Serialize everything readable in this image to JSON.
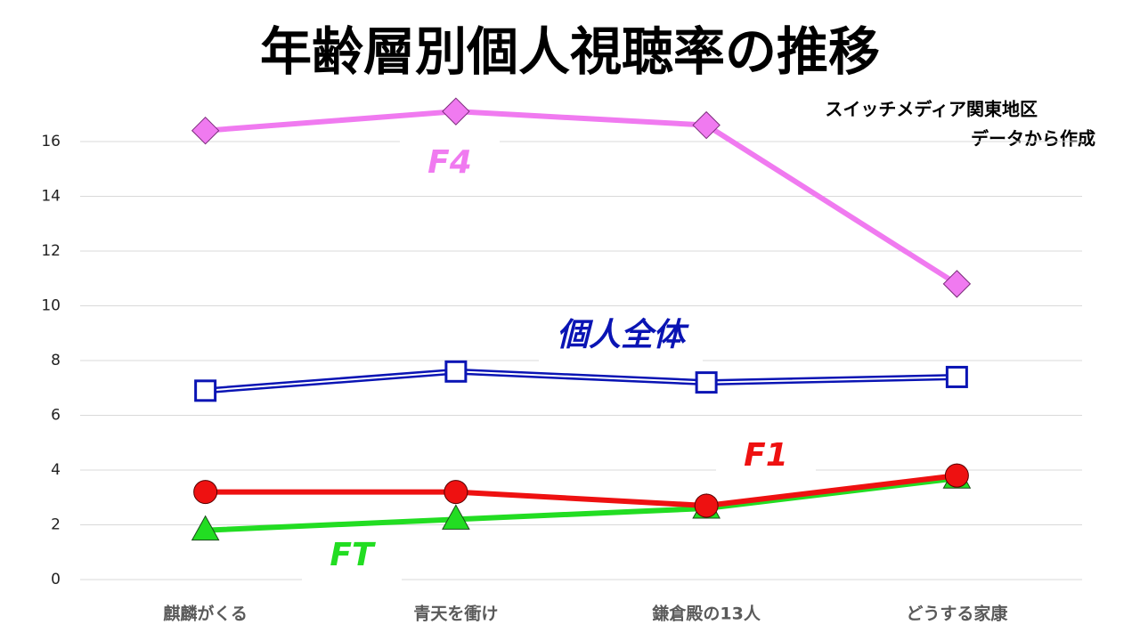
{
  "chart_data": {
    "type": "line",
    "title": "年齢層別個人視聴率の推移",
    "source": [
      "スイッチメディア関東地区",
      "データから作成"
    ],
    "categories": [
      "麒麟がくる",
      "青天を衝け",
      "鎌倉殿の13人",
      "どうする家康"
    ],
    "series": [
      {
        "name": "F4",
        "color": "#f07af0",
        "marker": "diamond",
        "values": [
          16.4,
          17.1,
          16.6,
          10.8
        ]
      },
      {
        "name": "個人全体",
        "color": "#0a14b4",
        "marker": "square",
        "values": [
          6.9,
          7.6,
          7.2,
          7.4
        ]
      },
      {
        "name": "FT",
        "color": "#22dd22",
        "marker": "triangle",
        "values": [
          1.8,
          2.2,
          2.6,
          3.7
        ]
      },
      {
        "name": "F1",
        "color": "#ee1111",
        "marker": "circle",
        "values": [
          3.2,
          3.2,
          2.7,
          3.8
        ]
      }
    ],
    "ylim": [
      0,
      16
    ],
    "yticks": [
      0,
      2,
      4,
      6,
      8,
      10,
      12,
      14,
      16
    ],
    "grid": true
  }
}
